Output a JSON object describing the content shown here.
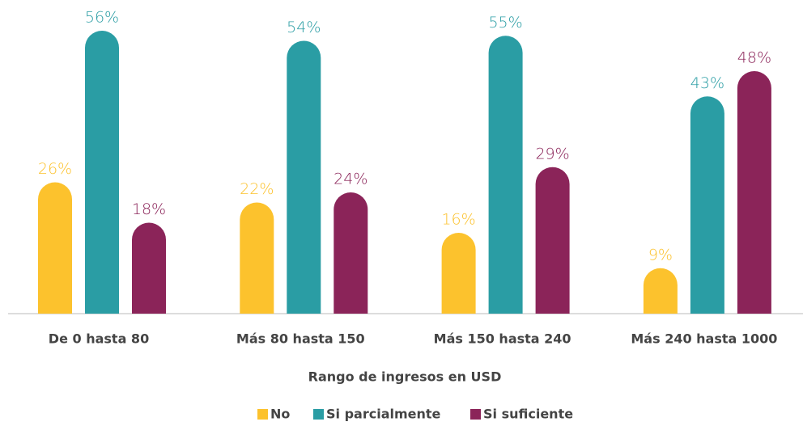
{
  "chart_data": {
    "type": "bar",
    "x_label": "Rango de ingresos en USD",
    "categories": [
      "De 0 hasta 80",
      "Más 80 hasta 150",
      "Más 150 hasta 240",
      "Más 240 hasta 1000"
    ],
    "series": [
      {
        "name": "No",
        "color": "#fcc22d",
        "values": [
          26,
          22,
          16,
          9
        ],
        "value_labels": [
          "26%",
          "22%",
          "16%",
          "9%"
        ]
      },
      {
        "name": "Si parcialmente",
        "color": "#2a9da4",
        "values": [
          56,
          54,
          55,
          43
        ],
        "value_labels": [
          "56%",
          "54%",
          "55%",
          "43%"
        ]
      },
      {
        "name": "Si suficiente",
        "color": "#8b2459",
        "values": [
          18,
          24,
          29,
          48
        ],
        "value_labels": [
          "18%",
          "24%",
          "29%",
          "48%"
        ]
      }
    ],
    "ylim": [
      0,
      60
    ],
    "legend": "bottom"
  }
}
